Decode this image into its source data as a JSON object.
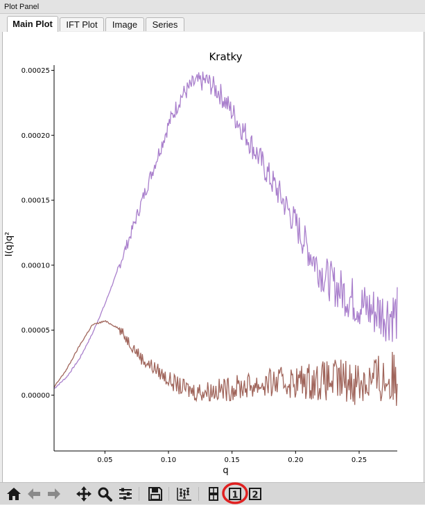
{
  "panel": {
    "title": "Plot Panel"
  },
  "tabs": [
    {
      "label": "Main Plot",
      "active": true
    },
    {
      "label": "IFT Plot",
      "active": false
    },
    {
      "label": "Image",
      "active": false
    },
    {
      "label": "Series",
      "active": false
    }
  ],
  "toolbar": {
    "buttons": [
      {
        "icon": "home-icon"
      },
      {
        "icon": "back-arrow-icon"
      },
      {
        "icon": "forward-arrow-icon"
      },
      {
        "icon": "pan-icon"
      },
      {
        "icon": "zoom-icon"
      },
      {
        "icon": "subplots-icon"
      },
      {
        "icon": "save-icon"
      },
      {
        "icon": "error-bars-icon"
      },
      {
        "icon": "two-plots-icon"
      },
      {
        "icon": "plot-one-icon",
        "label": "1",
        "highlighted": true
      },
      {
        "icon": "plot-two-icon",
        "label": "2"
      }
    ],
    "highlight_color": "#e02020"
  },
  "chart_data": {
    "type": "line",
    "title": "Kratky",
    "xlabel": "q",
    "ylabel": "I(q)q²",
    "xlim": [
      0.01,
      0.28
    ],
    "ylim": [
      -4.3e-05,
      0.000254
    ],
    "xticks": [
      0.05,
      0.1,
      0.15,
      0.2,
      0.25
    ],
    "xtick_labels": [
      "0.05",
      "0.10",
      "0.15",
      "0.20",
      "0.25"
    ],
    "yticks": [
      0.0,
      5e-05,
      0.0001,
      0.00015,
      0.0002,
      0.00025
    ],
    "ytick_labels": [
      "0.00000",
      "0.00005",
      "0.00010",
      "0.00015",
      "0.00020",
      "0.00025"
    ],
    "grid": false,
    "series": [
      {
        "color": "#a97fcc",
        "points": [
          [
            0.01,
            5e-06
          ],
          [
            0.02,
            1.4e-05
          ],
          [
            0.03,
            2.8e-05
          ],
          [
            0.04,
            4.7e-05
          ],
          [
            0.05,
            7e-05
          ],
          [
            0.06,
            9.6e-05
          ],
          [
            0.07,
            0.000123
          ],
          [
            0.08,
            0.000152
          ],
          [
            0.09,
            0.00018
          ],
          [
            0.1,
            0.000208
          ],
          [
            0.11,
            0.00023
          ],
          [
            0.12,
            0.00024
          ],
          [
            0.13,
            0.000242
          ],
          [
            0.14,
            0.000233
          ],
          [
            0.15,
            0.000218
          ],
          [
            0.16,
            0.000202
          ],
          [
            0.17,
            0.000185
          ],
          [
            0.18,
            0.000167
          ],
          [
            0.19,
            0.00015
          ],
          [
            0.2,
            0.000132
          ],
          [
            0.21,
            0.000112
          ],
          [
            0.22,
            9.5e-05
          ],
          [
            0.23,
            8.5e-05
          ],
          [
            0.24,
            7.7e-05
          ],
          [
            0.25,
            7e-05
          ],
          [
            0.26,
            6.5e-05
          ],
          [
            0.27,
            6.3e-05
          ],
          [
            0.28,
            6.2e-05
          ]
        ]
      },
      {
        "color": "#a0655b",
        "points": [
          [
            0.01,
            6e-06
          ],
          [
            0.02,
            2e-05
          ],
          [
            0.03,
            3.8e-05
          ],
          [
            0.04,
            5.4e-05
          ],
          [
            0.05,
            5.7e-05
          ],
          [
            0.06,
            5.2e-05
          ],
          [
            0.07,
            4e-05
          ],
          [
            0.08,
            2.7e-05
          ],
          [
            0.09,
            2e-05
          ],
          [
            0.1,
            1.2e-05
          ],
          [
            0.11,
            6e-06
          ],
          [
            0.12,
            3e-06
          ],
          [
            0.13,
            3e-06
          ],
          [
            0.14,
            4e-06
          ],
          [
            0.15,
            5e-06
          ],
          [
            0.16,
            7e-06
          ],
          [
            0.17,
            8e-06
          ],
          [
            0.18,
            9e-06
          ],
          [
            0.19,
            1e-05
          ],
          [
            0.2,
            1e-05
          ],
          [
            0.21,
            1.1e-05
          ],
          [
            0.22,
            1.1e-05
          ],
          [
            0.23,
            1.1e-05
          ],
          [
            0.24,
            1.1e-05
          ],
          [
            0.25,
            1.1e-05
          ],
          [
            0.26,
            1.1e-05
          ],
          [
            0.27,
            1.2e-05
          ],
          [
            0.28,
            1.2e-05
          ]
        ]
      }
    ]
  }
}
